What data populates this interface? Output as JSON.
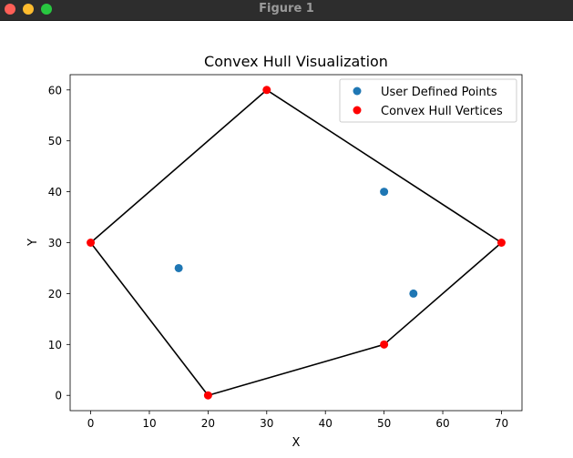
{
  "window": {
    "title": "Figure 1"
  },
  "chart_data": {
    "type": "scatter",
    "title": "Convex Hull Visualization",
    "xlabel": "X",
    "ylabel": "Y",
    "xlim": [
      -3.5,
      73.5
    ],
    "ylim": [
      -3,
      63
    ],
    "x_ticks": [
      0,
      10,
      20,
      30,
      40,
      50,
      60,
      70
    ],
    "y_ticks": [
      0,
      10,
      20,
      30,
      40,
      50,
      60
    ],
    "grid": false,
    "legend_position": "top-right",
    "series": [
      {
        "name": "User Defined Points",
        "color": "#1f77b4",
        "points": [
          [
            15,
            25
          ],
          [
            50,
            40
          ],
          [
            55,
            20
          ]
        ]
      },
      {
        "name": "Convex Hull Vertices",
        "color": "#ff0000",
        "points": [
          [
            0,
            30
          ],
          [
            30,
            60
          ],
          [
            70,
            30
          ],
          [
            50,
            10
          ],
          [
            20,
            0
          ]
        ]
      }
    ],
    "hull": {
      "color": "#000000",
      "polygon": [
        [
          0,
          30
        ],
        [
          30,
          60
        ],
        [
          70,
          30
        ],
        [
          50,
          10
        ],
        [
          20,
          0
        ]
      ]
    }
  }
}
